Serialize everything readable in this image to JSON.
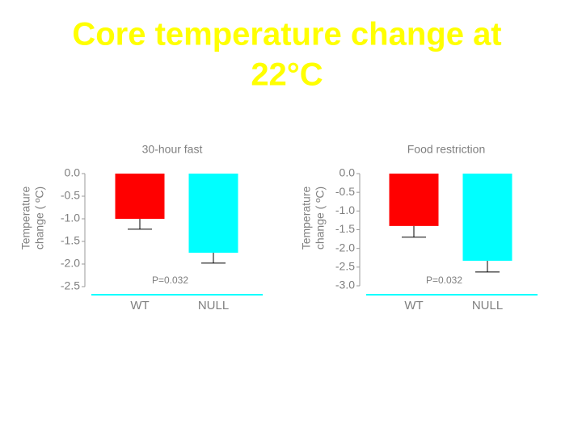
{
  "title": [
    "Core temperature change at",
    "22°C"
  ],
  "chart_data": [
    {
      "type": "bar",
      "title": "30-hour fast",
      "ylabel": [
        "Temperature",
        "change ( ºC)"
      ],
      "categories": [
        "WT",
        "NULL"
      ],
      "values": [
        -1.0,
        -1.75
      ],
      "errors": [
        0.23,
        0.23
      ],
      "colors": [
        "#ff0000",
        "#00ffff"
      ],
      "annotation": "P=0.032",
      "ylim": [
        -2.5,
        0
      ],
      "yticks": [
        {
          "value": -2.5,
          "label": "-2.5"
        },
        {
          "value": -2,
          "label": "-2.0"
        },
        {
          "value": -1.5,
          "label": "-1.5"
        },
        {
          "value": -1,
          "label": "-1.0"
        },
        {
          "value": -0.5,
          "label": "-0.5"
        },
        {
          "value": 0,
          "label": "0.0"
        }
      ]
    },
    {
      "type": "bar",
      "title": "Food restriction",
      "ylabel": [
        "Temperature",
        "change ( ºC)"
      ],
      "categories": [
        "WT",
        "NULL"
      ],
      "values": [
        -1.4,
        -2.33
      ],
      "errors": [
        0.3,
        0.3
      ],
      "colors": [
        "#ff0000",
        "#00ffff"
      ],
      "annotation": "P=0.032",
      "ylim": [
        -3,
        0
      ],
      "yticks": [
        {
          "value": -3,
          "label": "-3.0"
        },
        {
          "value": -2.5,
          "label": "-2.5"
        },
        {
          "value": -2,
          "label": "-2.0"
        },
        {
          "value": -1.5,
          "label": "-1.5"
        },
        {
          "value": -1,
          "label": "-1.0"
        },
        {
          "value": -0.5,
          "label": "-0.5"
        },
        {
          "value": 0,
          "label": "0.0"
        }
      ]
    }
  ]
}
